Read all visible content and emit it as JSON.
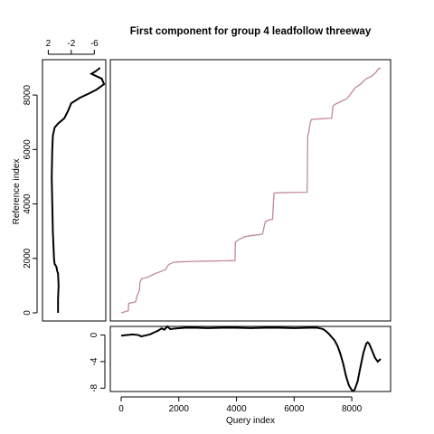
{
  "chart_data": [
    {
      "panel": "main",
      "type": "line",
      "title": "First component for group 4 leadfollow threeway",
      "xlabel": "Query index",
      "ylabel": "Reference index",
      "xlim": [
        0,
        9000
      ],
      "ylim": [
        0,
        9000
      ],
      "grid": false,
      "line_color": "#c08a98",
      "x": [
        0,
        250,
        260,
        500,
        560,
        630,
        650,
        700,
        900,
        1000,
        1200,
        1450,
        1550,
        1600,
        1650,
        1700,
        1750,
        1800,
        2000,
        2500,
        3000,
        3500,
        3950,
        3960,
        4100,
        4300,
        4600,
        4800,
        4900,
        5000,
        5100,
        5150,
        5250,
        5300,
        5500,
        6000,
        6450,
        6470,
        6500,
        6560,
        6600,
        6800,
        7000,
        7200,
        7300,
        7350,
        7400,
        7500,
        7700,
        7800,
        7900,
        8000,
        8100,
        8300,
        8500,
        8700,
        8850,
        8900,
        9000
      ],
      "y": [
        0,
        80,
        350,
        400,
        650,
        800,
        1100,
        1250,
        1300,
        1350,
        1450,
        1550,
        1600,
        1700,
        1780,
        1800,
        1820,
        1850,
        1870,
        1890,
        1900,
        1910,
        1920,
        2600,
        2700,
        2800,
        2850,
        2870,
        2900,
        3350,
        3400,
        3420,
        3430,
        4400,
        4410,
        4420,
        4430,
        6500,
        6600,
        7000,
        7100,
        7120,
        7130,
        7140,
        7150,
        7600,
        7650,
        7700,
        7800,
        7850,
        7950,
        8100,
        8250,
        8400,
        8600,
        8700,
        8850,
        8950,
        9000
      ],
      "xticks": [
        0,
        2000,
        4000,
        6000,
        8000
      ],
      "yticks": [
        0,
        2000,
        4000,
        6000,
        8000
      ]
    },
    {
      "panel": "left",
      "type": "line",
      "orientation": "reversed-x",
      "xlim": [
        3,
        -8
      ],
      "ylim": [
        0,
        9000
      ],
      "xticks": [
        2,
        -2,
        -6
      ],
      "tick_labels": [
        "2",
        "-2",
        "-6"
      ],
      "line_color": "#000000",
      "x": [
        0.3,
        0.3,
        0.2,
        0.3,
        0.4,
        0.6,
        0.9,
        1.0,
        1.1,
        1.2,
        1.3,
        1.4,
        1.3,
        1.2,
        0.9,
        0.3,
        -0.8,
        -1.4,
        -2.0,
        -3.5,
        -5.0,
        -6.4,
        -7.7,
        -7.3,
        -5.5,
        -6.3,
        -7.0
      ],
      "y": [
        0,
        500,
        1000,
        1450,
        1500,
        1700,
        1800,
        2000,
        2500,
        3000,
        4000,
        5000,
        6000,
        6500,
        6800,
        6950,
        7150,
        7400,
        7700,
        7900,
        8050,
        8200,
        8400,
        8600,
        8780,
        8880,
        9000
      ]
    },
    {
      "panel": "bottom",
      "type": "line",
      "xlim": [
        0,
        9000
      ],
      "ylim": [
        -8.5,
        1.3
      ],
      "yticks": [
        0,
        -4,
        -8
      ],
      "tick_labels": [
        "0",
        "-4",
        "-8"
      ],
      "line_color": "#000000",
      "x": [
        0,
        200,
        400,
        600,
        700,
        800,
        1000,
        1200,
        1300,
        1400,
        1500,
        1600,
        1700,
        1900,
        2200,
        2600,
        3000,
        3500,
        4000,
        4500,
        5000,
        5500,
        6000,
        6500,
        6800,
        6900,
        7000,
        7100,
        7200,
        7300,
        7400,
        7500,
        7600,
        7700,
        7800,
        7900,
        8000,
        8050,
        8100,
        8200,
        8300,
        8400,
        8500,
        8550,
        8600,
        8700,
        8800,
        8900,
        9000
      ],
      "y": [
        -0.1,
        0.0,
        0.1,
        0.0,
        -0.2,
        -0.1,
        0.1,
        0.5,
        0.7,
        1.0,
        0.8,
        1.3,
        0.9,
        1.0,
        1.1,
        1.1,
        1.05,
        1.1,
        1.1,
        1.05,
        1.1,
        1.1,
        1.05,
        1.1,
        1.1,
        1.0,
        0.9,
        0.6,
        0.2,
        -0.3,
        -0.8,
        -1.6,
        -2.8,
        -4.3,
        -6.2,
        -7.6,
        -8.3,
        -8.4,
        -8.2,
        -7.0,
        -4.8,
        -2.7,
        -1.3,
        -1.1,
        -1.3,
        -2.3,
        -3.4,
        -4.0,
        -3.6
      ]
    }
  ]
}
